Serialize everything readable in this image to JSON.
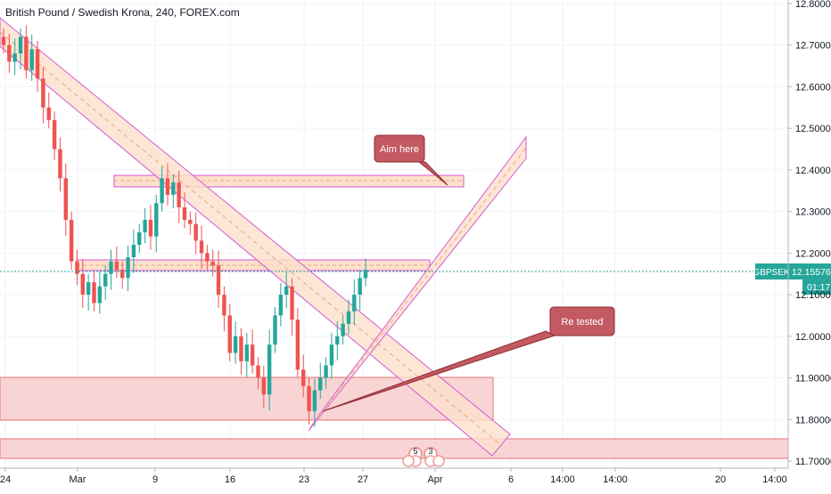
{
  "chart_data": {
    "type": "candlestick",
    "title": "British Pound / Swedish Krona, 240, FOREX.com",
    "symbol": "GBPSEK",
    "last_price": "12.15576",
    "countdown": "01:17",
    "ylim": [
      11.7,
      12.8
    ],
    "y_ticks": [
      "12.80000",
      "12.70000",
      "12.60000",
      "12.50000",
      "12.40000",
      "12.30000",
      "12.20000",
      "12.10000",
      "12.00000",
      "11.90000",
      "11.80000",
      "11.70000"
    ],
    "x_ticks": [
      "24",
      "Mar",
      "9",
      "16",
      "23",
      "27",
      "Apr",
      "6",
      "14:00",
      "14:00",
      "20",
      "14:00"
    ],
    "annotations": [
      {
        "text": "Aim here"
      },
      {
        "text": "Re tested"
      }
    ],
    "event_markers": [
      "5",
      "3"
    ],
    "colors": {
      "up": "#26a69a",
      "down": "#ef5350",
      "zone_fill": "#f7c6c6",
      "zone_stroke": "#d35ad6",
      "channel_fill": "#fde0cc",
      "label_box": "#c35a61"
    },
    "price_series": [
      12.7,
      12.66,
      12.68,
      12.72,
      12.64,
      12.69,
      12.62,
      12.55,
      12.52,
      12.45,
      12.38,
      12.28,
      12.18,
      12.15,
      12.1,
      12.13,
      12.08,
      12.12,
      12.15,
      12.18,
      12.16,
      12.14,
      12.19,
      12.22,
      12.25,
      12.28,
      12.24,
      12.32,
      12.38,
      12.34,
      12.37,
      12.31,
      12.28,
      12.27,
      12.23,
      12.2,
      12.18,
      12.17,
      12.1,
      12.05,
      11.96,
      12.0,
      11.94,
      11.98,
      11.93,
      11.9,
      11.86,
      11.98,
      12.05,
      12.1,
      12.12,
      12.04,
      11.92,
      11.88,
      11.82,
      11.87,
      11.9,
      11.93,
      11.98,
      12.0,
      12.03,
      12.06,
      12.1,
      12.14,
      12.16
    ]
  }
}
